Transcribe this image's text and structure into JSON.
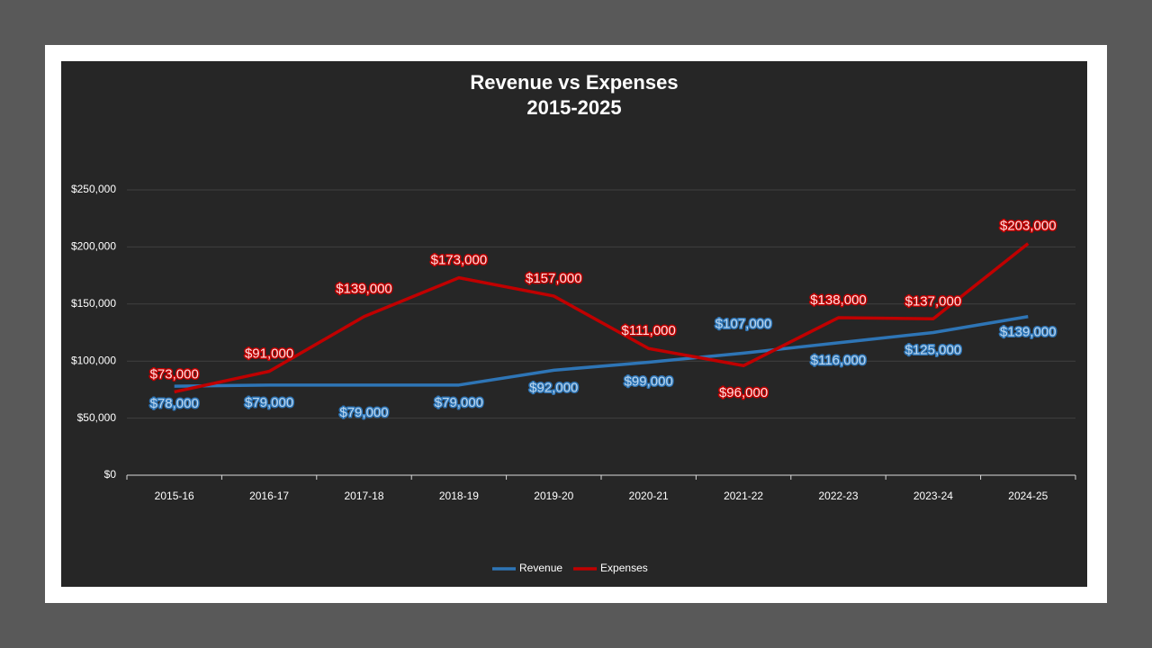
{
  "chart_data": {
    "type": "line",
    "title": "Revenue vs Expenses",
    "subtitle": "2015-2025",
    "categories": [
      "2015-16",
      "2016-17",
      "2017-18",
      "2018-19",
      "2019-20",
      "2020-21",
      "2021-22",
      "2022-23",
      "2023-24",
      "2024-25"
    ],
    "series": [
      {
        "name": "Revenue",
        "color": "#2e75b6",
        "values": [
          78000,
          79000,
          79000,
          79000,
          92000,
          99000,
          107000,
          116000,
          125000,
          139000
        ],
        "value_labels": [
          "$78,000",
          "$79,000",
          "$79,000",
          "$79,000",
          "$92,000",
          "$99,000",
          "$107,000",
          "$116,000",
          "$125,000",
          "$139,000"
        ]
      },
      {
        "name": "Expenses",
        "color": "#c00000",
        "values": [
          73000,
          91000,
          139000,
          173000,
          157000,
          111000,
          96000,
          138000,
          137000,
          203000
        ],
        "value_labels": [
          "$73,000",
          "$91,000",
          "$139,000",
          "$173,000",
          "$157,000",
          "$111,000",
          "$96,000",
          "$138,000",
          "$137,000",
          "$203,000"
        ]
      }
    ],
    "ylim": [
      0,
      250000
    ],
    "yticks": [
      {
        "value": 0,
        "label": "$0"
      },
      {
        "value": 50000,
        "label": "$50,000"
      },
      {
        "value": 100000,
        "label": "$100,000"
      },
      {
        "value": 150000,
        "label": "$150,000"
      },
      {
        "value": 200000,
        "label": "$200,000"
      },
      {
        "value": 250000,
        "label": "$250,000"
      }
    ],
    "grid": true,
    "legend": "bottom"
  }
}
